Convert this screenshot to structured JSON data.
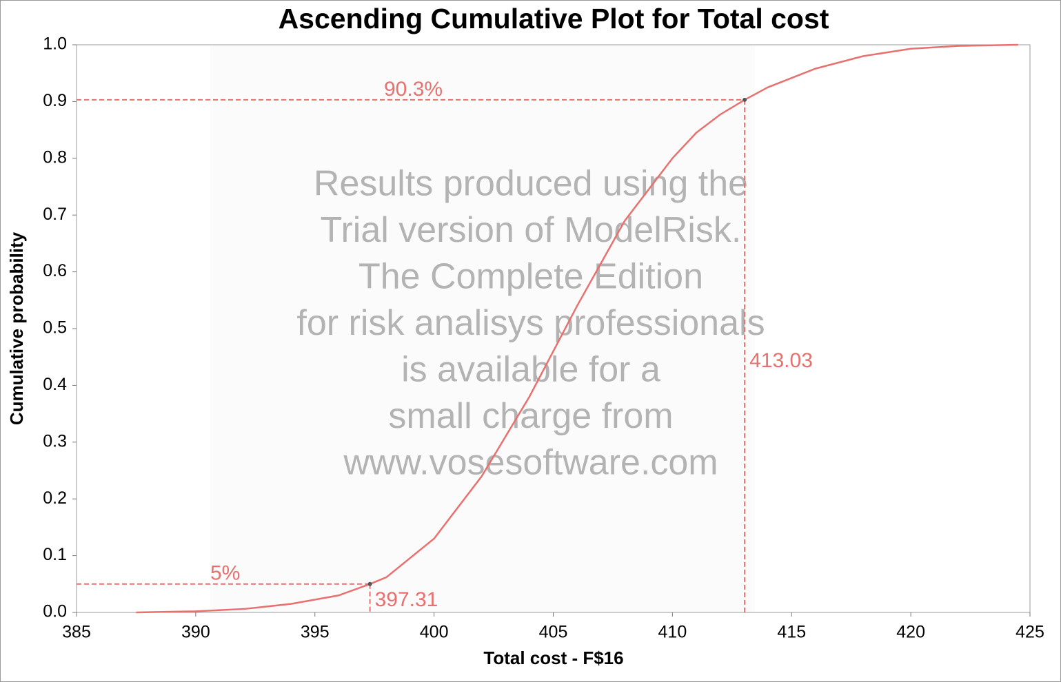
{
  "chart_data": {
    "type": "line",
    "title": "Ascending Cumulative Plot for Total cost",
    "x_label": "Total cost - F$16",
    "y_label": "Cumulative probability",
    "x": [
      387.5,
      390,
      392,
      394,
      396,
      397.31,
      398,
      400,
      402,
      404,
      405,
      406,
      408,
      410,
      411,
      412,
      413.03,
      414,
      416,
      418,
      420,
      422,
      424.5
    ],
    "values": [
      0,
      0.002,
      0.006,
      0.015,
      0.03,
      0.05,
      0.062,
      0.13,
      0.24,
      0.38,
      0.46,
      0.54,
      0.69,
      0.8,
      0.845,
      0.877,
      0.903,
      0.925,
      0.958,
      0.98,
      0.993,
      0.998,
      1.0
    ],
    "color": "#e8706e",
    "xlim": [
      385,
      425
    ],
    "xticks": [
      385,
      390,
      395,
      400,
      405,
      410,
      415,
      420,
      425
    ],
    "ylim": [
      0,
      1
    ],
    "yticks": [
      {
        "value": 0,
        "label": "0.0"
      },
      0.1,
      0.2,
      0.3,
      0.4,
      0.5,
      0.6,
      0.7,
      0.8,
      0.9,
      {
        "value": 1,
        "label": "1.0"
      }
    ],
    "markers": [
      {
        "x": 397.31,
        "y": 0.05,
        "x_label": "397.31",
        "y_label": "5%"
      },
      {
        "x": 413.03,
        "y": 0.903,
        "x_label": "413.03",
        "y_label": "90.3%"
      }
    ],
    "watermark": [
      "Results produced using the",
      "Trial version  of   ModelRisk.",
      "The Complete Edition",
      "for risk analisys professionals",
      "is available for a",
      "small charge from",
      "www.vosesoftware.com"
    ]
  }
}
